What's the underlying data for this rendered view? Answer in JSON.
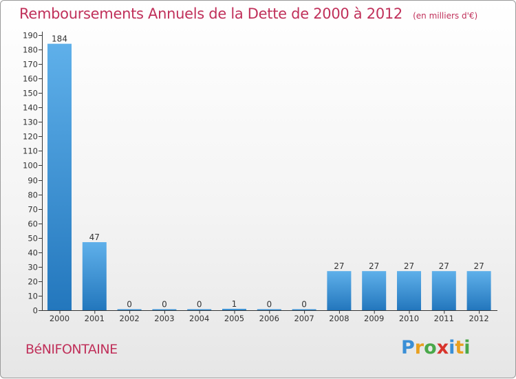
{
  "header": {
    "title": "Remboursements Annuels de la Dette de 2000 à 2012",
    "unit": "(en milliers d'€)"
  },
  "footer": {
    "commune": "BéNIFONTAINE",
    "brand": {
      "letters": [
        "P",
        "r",
        "o",
        "x",
        "i",
        "t",
        "i"
      ],
      "colors": [
        "#3a8fd6",
        "#e8a020",
        "#4aa84a",
        "#d8342c",
        "#3a8fd6",
        "#e8a020",
        "#4aa84a"
      ]
    }
  },
  "chart_data": {
    "type": "bar",
    "title": "Remboursements Annuels de la Dette de 2000 à 2012",
    "unit": "(en milliers d'€)",
    "categories": [
      "2000",
      "2001",
      "2002",
      "2003",
      "2004",
      "2005",
      "2006",
      "2007",
      "2008",
      "2009",
      "2010",
      "2011",
      "2012"
    ],
    "values": [
      184,
      47,
      0,
      0,
      0,
      1,
      0,
      0,
      27,
      27,
      27,
      27,
      27
    ],
    "data_labels": [
      "184",
      "47",
      "0",
      "0",
      "0",
      "1",
      "0",
      "0",
      "27",
      "27",
      "27",
      "27",
      "27"
    ],
    "ylim": [
      0,
      190
    ],
    "yticks": [
      0,
      10,
      20,
      30,
      40,
      50,
      60,
      70,
      80,
      90,
      100,
      110,
      120,
      130,
      140,
      150,
      160,
      170,
      180,
      190
    ],
    "grid": false,
    "legend": "none",
    "colors": {
      "bar_light": "#5fb0ea",
      "bar_dark": "#2377bd",
      "axis": "#333333",
      "text": "#333333"
    }
  }
}
